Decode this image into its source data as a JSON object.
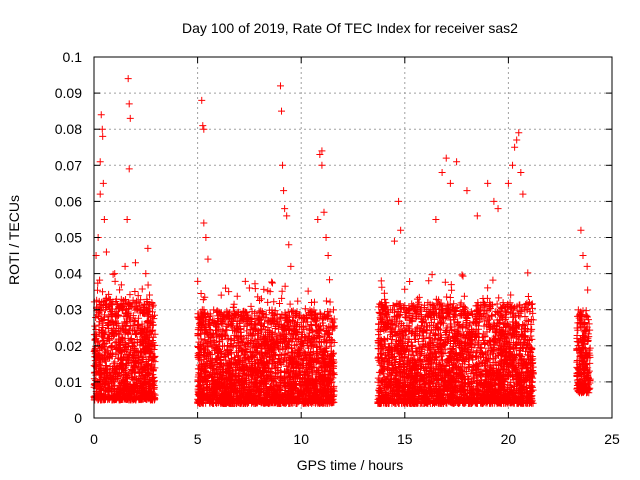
{
  "chart_data": {
    "type": "scatter",
    "title": "Day 100 of 2019, Rate Of TEC Index for receiver sas2",
    "xlabel": "GPS time / hours",
    "ylabel": "ROTI / TECUs",
    "xlim": [
      0,
      25
    ],
    "ylim": [
      0,
      0.1
    ],
    "x_ticks": [
      "0",
      "5",
      "10",
      "15",
      "20",
      "25"
    ],
    "y_ticks": [
      "0",
      "0.01",
      "0.02",
      "0.03",
      "0.04",
      "0.05",
      "0.06",
      "0.07",
      "0.08",
      "0.09",
      "0.1"
    ],
    "x_tick_values": [
      0,
      5,
      10,
      15,
      20,
      25
    ],
    "y_tick_values": [
      0,
      0.01,
      0.02,
      0.03,
      0.04,
      0.05,
      0.06,
      0.07,
      0.08,
      0.09,
      0.1
    ],
    "grid": true,
    "marker": "+",
    "color": "#ff0000",
    "series": [
      {
        "segments": [
          {
            "x_start": 0.0,
            "x_end": 2.95,
            "typical_min": 0.005,
            "typical_max": 0.033
          },
          {
            "x_start": 5.0,
            "x_end": 11.6,
            "typical_min": 0.004,
            "typical_max": 0.03
          },
          {
            "x_start": 13.7,
            "x_end": 21.2,
            "typical_min": 0.004,
            "typical_max": 0.032
          },
          {
            "x_start": 23.3,
            "x_end": 23.95,
            "typical_min": 0.007,
            "typical_max": 0.03
          }
        ],
        "points": [
          {
            "x": 0.1,
            "y": 0.045
          },
          {
            "x": 0.2,
            "y": 0.05
          },
          {
            "x": 0.3,
            "y": 0.062
          },
          {
            "x": 0.3,
            "y": 0.071
          },
          {
            "x": 0.35,
            "y": 0.084
          },
          {
            "x": 0.4,
            "y": 0.08
          },
          {
            "x": 0.42,
            "y": 0.078
          },
          {
            "x": 0.45,
            "y": 0.065
          },
          {
            "x": 0.5,
            "y": 0.055
          },
          {
            "x": 0.6,
            "y": 0.046
          },
          {
            "x": 1.0,
            "y": 0.04
          },
          {
            "x": 1.5,
            "y": 0.042
          },
          {
            "x": 1.6,
            "y": 0.055
          },
          {
            "x": 1.65,
            "y": 0.094
          },
          {
            "x": 1.7,
            "y": 0.087
          },
          {
            "x": 1.7,
            "y": 0.069
          },
          {
            "x": 1.75,
            "y": 0.083
          },
          {
            "x": 2.0,
            "y": 0.043
          },
          {
            "x": 2.5,
            "y": 0.04
          },
          {
            "x": 2.6,
            "y": 0.047
          },
          {
            "x": 5.2,
            "y": 0.088
          },
          {
            "x": 5.25,
            "y": 0.081
          },
          {
            "x": 5.3,
            "y": 0.08
          },
          {
            "x": 5.3,
            "y": 0.054
          },
          {
            "x": 5.4,
            "y": 0.05
          },
          {
            "x": 5.5,
            "y": 0.044
          },
          {
            "x": 6.5,
            "y": 0.035
          },
          {
            "x": 7.5,
            "y": 0.036
          },
          {
            "x": 8.5,
            "y": 0.035
          },
          {
            "x": 9.0,
            "y": 0.092
          },
          {
            "x": 9.05,
            "y": 0.085
          },
          {
            "x": 9.1,
            "y": 0.07
          },
          {
            "x": 9.15,
            "y": 0.063
          },
          {
            "x": 9.2,
            "y": 0.058
          },
          {
            "x": 9.3,
            "y": 0.056
          },
          {
            "x": 9.4,
            "y": 0.048
          },
          {
            "x": 9.5,
            "y": 0.042
          },
          {
            "x": 10.8,
            "y": 0.055
          },
          {
            "x": 10.9,
            "y": 0.073
          },
          {
            "x": 11.0,
            "y": 0.074
          },
          {
            "x": 11.0,
            "y": 0.07
          },
          {
            "x": 11.1,
            "y": 0.057
          },
          {
            "x": 11.2,
            "y": 0.05
          },
          {
            "x": 11.3,
            "y": 0.045
          },
          {
            "x": 14.5,
            "y": 0.049
          },
          {
            "x": 14.7,
            "y": 0.06
          },
          {
            "x": 14.8,
            "y": 0.052
          },
          {
            "x": 16.5,
            "y": 0.055
          },
          {
            "x": 16.8,
            "y": 0.068
          },
          {
            "x": 17.0,
            "y": 0.072
          },
          {
            "x": 17.2,
            "y": 0.065
          },
          {
            "x": 17.5,
            "y": 0.071
          },
          {
            "x": 18.0,
            "y": 0.063
          },
          {
            "x": 18.5,
            "y": 0.056
          },
          {
            "x": 19.0,
            "y": 0.065
          },
          {
            "x": 19.3,
            "y": 0.06
          },
          {
            "x": 19.5,
            "y": 0.058
          },
          {
            "x": 20.0,
            "y": 0.065
          },
          {
            "x": 20.2,
            "y": 0.07
          },
          {
            "x": 20.3,
            "y": 0.075
          },
          {
            "x": 20.4,
            "y": 0.077
          },
          {
            "x": 20.5,
            "y": 0.079
          },
          {
            "x": 20.6,
            "y": 0.068
          },
          {
            "x": 20.7,
            "y": 0.062
          },
          {
            "x": 23.5,
            "y": 0.052
          },
          {
            "x": 23.6,
            "y": 0.045
          },
          {
            "x": 23.8,
            "y": 0.042
          }
        ]
      }
    ]
  }
}
